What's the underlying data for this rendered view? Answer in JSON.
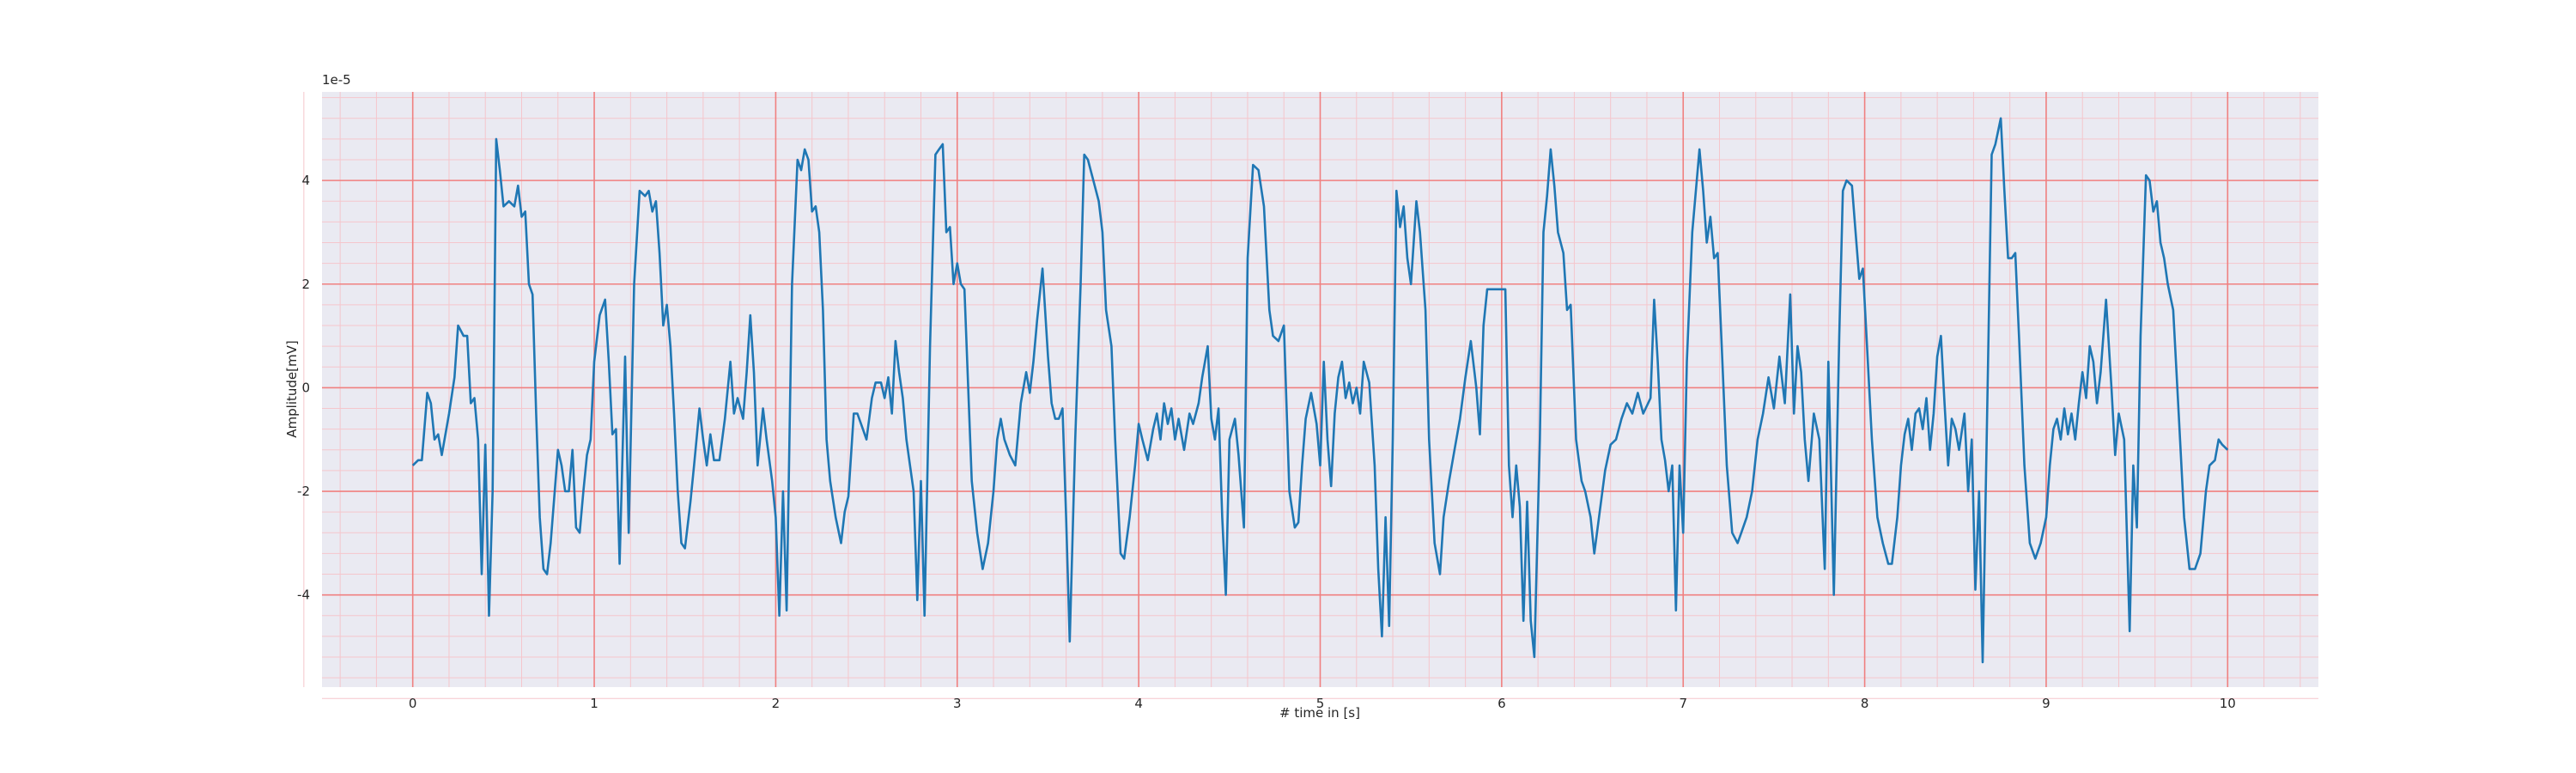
{
  "chart_data": {
    "type": "line",
    "x_label": "# time in [s]",
    "y_label": "Amplitude[mV]",
    "y_offset_label": "1e-5",
    "xlim": [
      -0.5,
      10.5
    ],
    "ylim": [
      -5.78,
      5.71
    ],
    "xticks": [
      0,
      1,
      2,
      3,
      4,
      5,
      6,
      7,
      8,
      9,
      10
    ],
    "yticks": [
      -4,
      -2,
      0,
      2,
      4
    ],
    "grid": true,
    "minor_grid": true,
    "minor_divisions": 5,
    "background": "#eaeaf2",
    "grid_color": "#f08080",
    "minor_grid_color": "#f5c6cc",
    "color": "#1f77b4",
    "x": [
      0,
      0.03,
      0.05,
      0.08,
      0.1,
      0.12,
      0.14,
      0.16,
      0.2,
      0.23,
      0.25,
      0.28,
      0.3,
      0.32,
      0.34,
      0.36,
      0.38,
      0.4,
      0.42,
      0.44,
      0.46,
      0.48,
      0.5,
      0.53,
      0.56,
      0.58,
      0.6,
      0.62,
      0.64,
      0.66,
      0.68,
      0.7,
      0.72,
      0.74,
      0.76,
      0.8,
      0.82,
      0.84,
      0.86,
      0.88,
      0.9,
      0.92,
      0.94,
      0.96,
      0.98,
      1.0,
      1.03,
      1.06,
      1.08,
      1.1,
      1.12,
      1.14,
      1.17,
      1.19,
      1.22,
      1.25,
      1.28,
      1.3,
      1.32,
      1.34,
      1.36,
      1.38,
      1.4,
      1.42,
      1.44,
      1.46,
      1.48,
      1.5,
      1.53,
      1.55,
      1.58,
      1.6,
      1.62,
      1.64,
      1.66,
      1.69,
      1.72,
      1.75,
      1.77,
      1.79,
      1.82,
      1.84,
      1.86,
      1.88,
      1.9,
      1.93,
      1.95,
      1.98,
      2.0,
      2.02,
      2.04,
      2.06,
      2.09,
      2.12,
      2.14,
      2.16,
      2.18,
      2.2,
      2.22,
      2.24,
      2.26,
      2.28,
      2.3,
      2.33,
      2.36,
      2.38,
      2.4,
      2.43,
      2.45,
      2.48,
      2.5,
      2.53,
      2.55,
      2.58,
      2.6,
      2.62,
      2.64,
      2.66,
      2.68,
      2.7,
      2.72,
      2.74,
      2.76,
      2.78,
      2.8,
      2.82,
      2.85,
      2.88,
      2.9,
      2.92,
      2.94,
      2.96,
      2.98,
      3.0,
      3.02,
      3.04,
      3.08,
      3.11,
      3.14,
      3.17,
      3.2,
      3.22,
      3.24,
      3.26,
      3.29,
      3.32,
      3.35,
      3.38,
      3.4,
      3.42,
      3.44,
      3.47,
      3.5,
      3.52,
      3.54,
      3.56,
      3.58,
      3.6,
      3.62,
      3.65,
      3.68,
      3.7,
      3.72,
      3.75,
      3.78,
      3.8,
      3.82,
      3.85,
      3.87,
      3.9,
      3.92,
      3.95,
      3.98,
      4.0,
      4.02,
      4.05,
      4.08,
      4.1,
      4.12,
      4.14,
      4.16,
      4.18,
      4.2,
      4.22,
      4.25,
      4.28,
      4.3,
      4.33,
      4.35,
      4.38,
      4.4,
      4.42,
      4.44,
      4.46,
      4.48,
      4.5,
      4.53,
      4.55,
      4.58,
      4.6,
      4.63,
      4.66,
      4.69,
      4.72,
      4.74,
      4.77,
      4.8,
      4.83,
      4.86,
      4.88,
      4.9,
      4.92,
      4.95,
      4.98,
      5.0,
      5.02,
      5.04,
      5.06,
      5.08,
      5.1,
      5.12,
      5.14,
      5.16,
      5.18,
      5.2,
      5.22,
      5.24,
      5.27,
      5.3,
      5.32,
      5.34,
      5.36,
      5.38,
      5.4,
      5.42,
      5.44,
      5.46,
      5.48,
      5.5,
      5.53,
      5.55,
      5.58,
      5.6,
      5.63,
      5.66,
      5.68,
      5.71,
      5.74,
      5.77,
      5.8,
      5.83,
      5.86,
      5.88,
      5.9,
      5.92,
      5.95,
      6.0,
      6.02,
      6.04,
      6.06,
      6.08,
      6.1,
      6.12,
      6.14,
      6.16,
      6.18,
      6.21,
      6.23,
      6.25,
      6.27,
      6.29,
      6.31,
      6.34,
      6.36,
      6.38,
      6.41,
      6.44,
      6.46,
      6.49,
      6.51,
      6.54,
      6.57,
      6.6,
      6.63,
      6.66,
      6.69,
      6.72,
      6.75,
      6.78,
      6.82,
      6.84,
      6.86,
      6.88,
      6.9,
      6.92,
      6.94,
      6.96,
      6.98,
      7.0,
      7.02,
      7.05,
      7.09,
      7.11,
      7.13,
      7.15,
      7.17,
      7.19,
      7.21,
      7.24,
      7.27,
      7.3,
      7.32,
      7.35,
      7.38,
      7.41,
      7.44,
      7.47,
      7.5,
      7.53,
      7.56,
      7.59,
      7.61,
      7.63,
      7.65,
      7.67,
      7.69,
      7.72,
      7.75,
      7.78,
      7.8,
      7.83,
      7.86,
      7.88,
      7.9,
      7.93,
      7.95,
      7.97,
      7.99,
      8.01,
      8.04,
      8.07,
      8.1,
      8.13,
      8.15,
      8.18,
      8.2,
      8.22,
      8.24,
      8.26,
      8.28,
      8.3,
      8.32,
      8.34,
      8.36,
      8.38,
      8.4,
      8.42,
      8.44,
      8.46,
      8.48,
      8.5,
      8.52,
      8.55,
      8.57,
      8.59,
      8.61,
      8.63,
      8.65,
      8.68,
      8.7,
      8.72,
      8.75,
      8.77,
      8.79,
      8.81,
      8.83,
      8.85,
      8.88,
      8.91,
      8.94,
      8.97,
      9.0,
      9.02,
      9.04,
      9.06,
      9.08,
      9.1,
      9.12,
      9.14,
      9.16,
      9.18,
      9.2,
      9.22,
      9.24,
      9.26,
      9.28,
      9.3,
      9.33,
      9.36,
      9.38,
      9.4,
      9.43,
      9.46,
      9.48,
      9.5,
      9.52,
      9.55,
      9.57,
      9.59,
      9.61,
      9.63,
      9.65,
      9.67,
      9.7,
      9.73,
      9.76,
      9.79,
      9.82,
      9.85,
      9.88,
      9.9,
      9.93,
      9.95,
      9.97,
      10.0
    ],
    "values": [
      -1.5,
      -1.4,
      -1.4,
      -0.1,
      -0.3,
      -1.0,
      -0.9,
      -1.3,
      -0.5,
      0.2,
      1.2,
      1.0,
      1.0,
      -0.3,
      -0.2,
      -1.0,
      -3.6,
      -1.1,
      -4.4,
      -2.0,
      4.8,
      4.2,
      3.5,
      3.6,
      3.5,
      3.9,
      3.3,
      3.4,
      2.0,
      1.8,
      -0.5,
      -2.5,
      -3.5,
      -3.6,
      -3.0,
      -1.2,
      -1.5,
      -2.0,
      -2.0,
      -1.2,
      -2.7,
      -2.8,
      -2.0,
      -1.3,
      -1.0,
      0.5,
      1.4,
      1.7,
      0.5,
      -0.9,
      -0.8,
      -3.4,
      0.6,
      -2.8,
      2.0,
      3.8,
      3.7,
      3.8,
      3.4,
      3.6,
      2.6,
      1.2,
      1.6,
      0.8,
      -0.5,
      -2.0,
      -3.0,
      -3.1,
      -2.2,
      -1.5,
      -0.4,
      -1.0,
      -1.5,
      -0.9,
      -1.4,
      -1.4,
      -0.6,
      0.5,
      -0.5,
      -0.2,
      -0.6,
      0.3,
      1.4,
      0.3,
      -1.5,
      -0.4,
      -1.0,
      -1.8,
      -2.5,
      -4.4,
      -2.0,
      -4.3,
      2.0,
      4.4,
      4.2,
      4.6,
      4.4,
      3.4,
      3.5,
      3.0,
      1.5,
      -1.0,
      -1.8,
      -2.5,
      -3.0,
      -2.4,
      -2.1,
      -0.5,
      -0.5,
      -0.8,
      -1.0,
      -0.2,
      0.1,
      0.1,
      -0.2,
      0.2,
      -0.5,
      0.9,
      0.3,
      -0.2,
      -1.0,
      -1.5,
      -2.0,
      -4.1,
      -1.8,
      -4.4,
      0.8,
      4.5,
      4.6,
      4.7,
      3.0,
      3.1,
      2.0,
      2.4,
      2.0,
      1.9,
      -1.8,
      -2.8,
      -3.5,
      -3.0,
      -2.0,
      -1.0,
      -0.6,
      -1.0,
      -1.3,
      -1.5,
      -0.3,
      0.3,
      -0.1,
      0.5,
      1.3,
      2.3,
      0.6,
      -0.3,
      -0.6,
      -0.6,
      -0.4,
      -2.5,
      -4.9,
      -1.0,
      2.0,
      4.5,
      4.4,
      4.0,
      3.6,
      3.0,
      1.5,
      0.8,
      -1.0,
      -3.2,
      -3.3,
      -2.5,
      -1.5,
      -0.7,
      -1.0,
      -1.4,
      -0.8,
      -0.5,
      -1.0,
      -0.3,
      -0.7,
      -0.4,
      -1.0,
      -0.6,
      -1.2,
      -0.5,
      -0.7,
      -0.3,
      0.2,
      0.8,
      -0.6,
      -1.0,
      -0.4,
      -2.5,
      -4.0,
      -1.0,
      -0.6,
      -1.3,
      -2.7,
      2.5,
      4.3,
      4.2,
      3.5,
      1.5,
      1.0,
      0.9,
      1.2,
      -2.0,
      -2.7,
      -2.6,
      -1.5,
      -0.6,
      -0.1,
      -0.7,
      -1.5,
      0.5,
      -1.0,
      -1.9,
      -0.5,
      0.2,
      0.5,
      -0.2,
      0.1,
      -0.3,
      0.0,
      -0.5,
      0.5,
      0.1,
      -1.5,
      -3.5,
      -4.8,
      -2.5,
      -4.6,
      -1.0,
      3.8,
      3.1,
      3.5,
      2.5,
      2.0,
      3.6,
      3.0,
      1.5,
      -1.0,
      -3.0,
      -3.6,
      -2.5,
      -1.8,
      -1.2,
      -0.6,
      0.2,
      0.9,
      0.0,
      -0.9,
      1.2,
      1.9,
      1.9,
      1.9,
      1.9,
      -1.5,
      -2.5,
      -1.5,
      -2.3,
      -4.5,
      -2.2,
      -4.5,
      -5.2,
      -1.0,
      3.0,
      3.7,
      4.6,
      3.9,
      3.0,
      2.6,
      1.5,
      1.6,
      -1.0,
      -1.8,
      -2.0,
      -2.5,
      -3.2,
      -2.4,
      -1.6,
      -1.1,
      -1.0,
      -0.6,
      -0.3,
      -0.5,
      -0.1,
      -0.5,
      -0.2,
      1.7,
      0.5,
      -1.0,
      -1.4,
      -2.0,
      -1.5,
      -4.3,
      -1.5,
      -2.8,
      0.5,
      3.0,
      4.6,
      3.8,
      2.8,
      3.3,
      2.5,
      2.6,
      1.0,
      -1.5,
      -2.8,
      -3.0,
      -2.8,
      -2.5,
      -2.0,
      -1.0,
      -0.5,
      0.2,
      -0.4,
      0.6,
      -0.3,
      1.8,
      -0.5,
      0.8,
      0.3,
      -1.0,
      -1.8,
      -0.5,
      -1.0,
      -3.5,
      0.5,
      -4.0,
      1.0,
      3.8,
      4.0,
      3.9,
      3.0,
      2.1,
      2.3,
      1.0,
      -1.0,
      -2.5,
      -3.0,
      -3.4,
      -3.4,
      -2.5,
      -1.5,
      -0.9,
      -0.6,
      -1.2,
      -0.5,
      -0.4,
      -0.8,
      -0.2,
      -1.2,
      -0.5,
      0.6,
      1.0,
      -0.3,
      -1.5,
      -0.6,
      -0.8,
      -1.2,
      -0.5,
      -2.0,
      -1.0,
      -3.9,
      -2.0,
      -5.3,
      0.5,
      4.5,
      4.7,
      5.2,
      3.8,
      2.5,
      2.5,
      2.6,
      1.0,
      -1.5,
      -3.0,
      -3.3,
      -3.0,
      -2.5,
      -1.5,
      -0.8,
      -0.6,
      -1.0,
      -0.4,
      -0.9,
      -0.5,
      -1.0,
      -0.3,
      0.3,
      -0.2,
      0.8,
      0.5,
      -0.3,
      0.3,
      1.7,
      0.0,
      -1.3,
      -0.5,
      -1.0,
      -4.7,
      -1.5,
      -2.7,
      1.0,
      4.1,
      4.0,
      3.4,
      3.6,
      2.8,
      2.5,
      2.0,
      1.5,
      -0.5,
      -2.5,
      -3.5,
      -3.5,
      -3.2,
      -2.0,
      -1.5,
      -1.4,
      -1.0,
      -1.1,
      -1.2
    ]
  }
}
